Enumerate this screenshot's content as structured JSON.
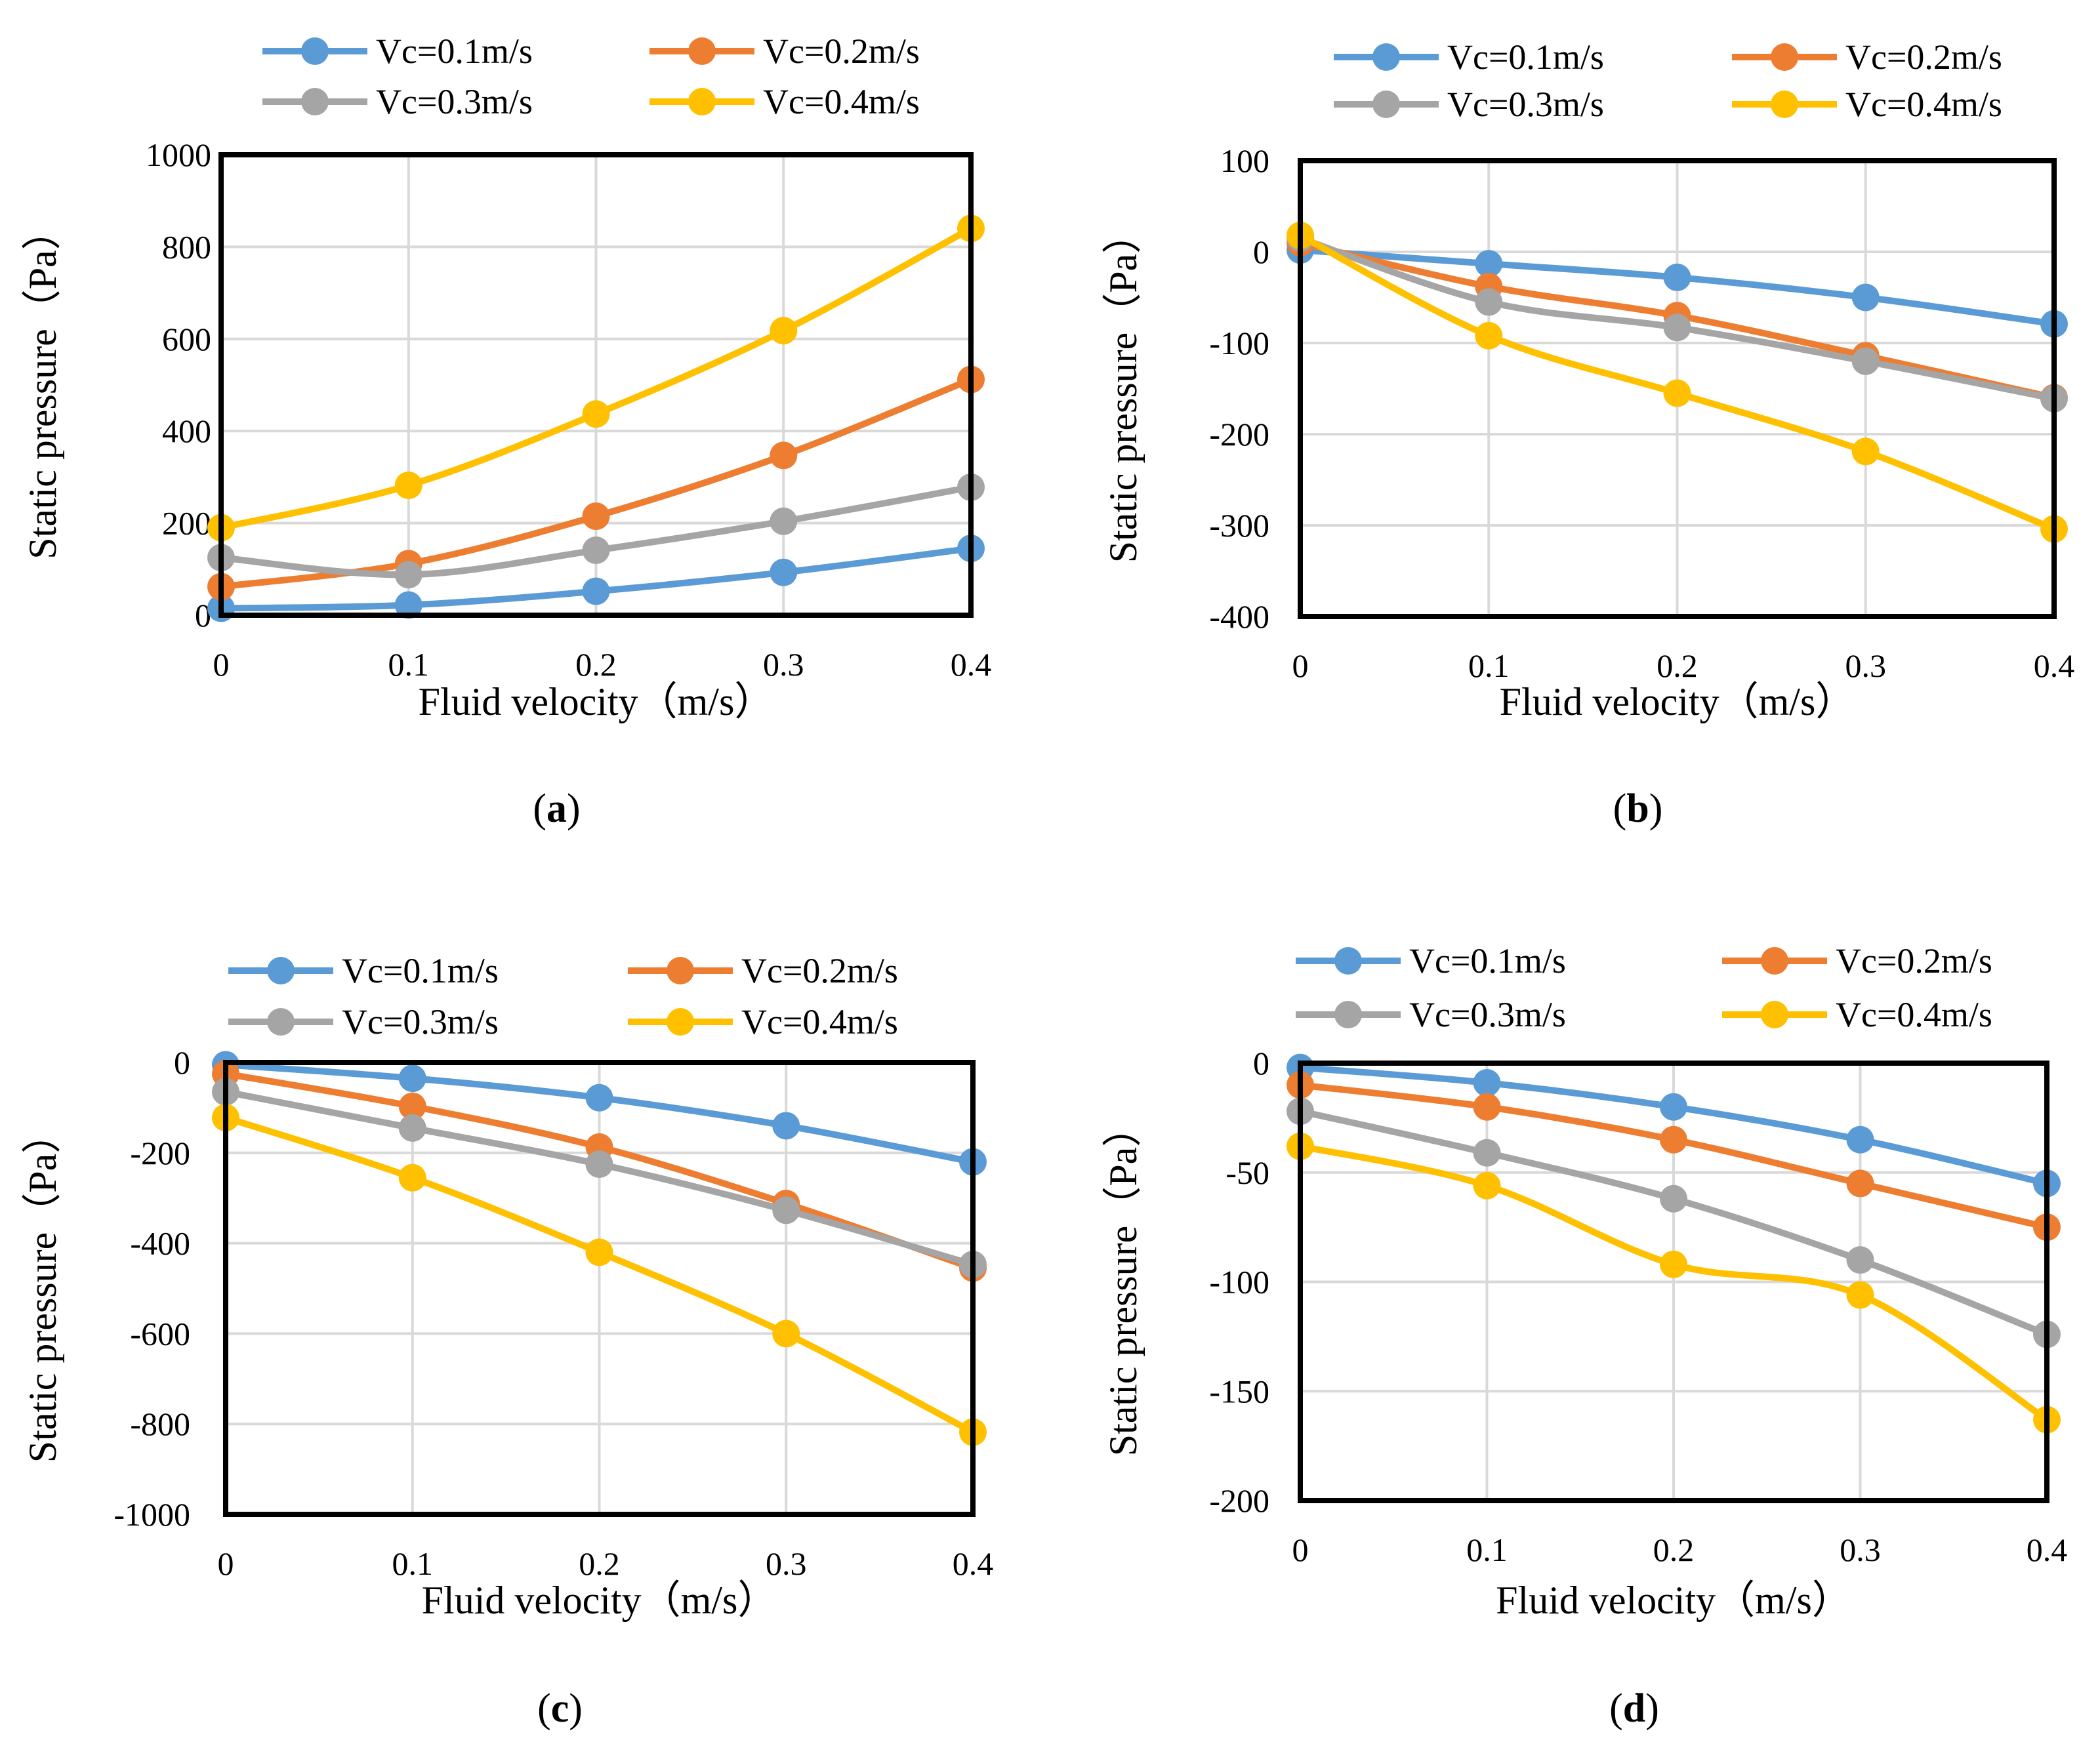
{
  "series_style": {
    "colors": [
      "#5B9BD5",
      "#ED7D31",
      "#A5A5A5",
      "#FFC000"
    ]
  },
  "chart_data": [
    {
      "type": "line",
      "panel_label": "a",
      "xlabel": "Fluid velocity（m/s）",
      "ylabel": "Static pressure（Pa）",
      "x": [
        0,
        0.1,
        0.2,
        0.3,
        0.4
      ],
      "xticks": [
        "0",
        "0.1",
        "0.2",
        "0.3",
        "0.4"
      ],
      "ylim": [
        0,
        1000
      ],
      "yticks": [
        0,
        200,
        400,
        600,
        800,
        1000
      ],
      "grid": true,
      "legend": "top",
      "series": [
        {
          "name": "Vc=0.1m/s",
          "values": [
            15,
            22,
            52,
            93,
            145
          ]
        },
        {
          "name": "Vc=0.2m/s",
          "values": [
            62,
            112,
            215,
            347,
            512
          ]
        },
        {
          "name": "Vc=0.3m/s",
          "values": [
            125,
            88,
            141,
            204,
            278
          ]
        },
        {
          "name": "Vc=0.4m/s",
          "values": [
            190,
            282,
            437,
            618,
            840
          ]
        }
      ]
    },
    {
      "type": "line",
      "panel_label": "b",
      "xlabel": "Fluid velocity（m/s）",
      "ylabel": "Static pressure（Pa）",
      "x": [
        0,
        0.1,
        0.2,
        0.3,
        0.4
      ],
      "xticks": [
        "0",
        "0.1",
        "0.2",
        "0.3",
        "0.4"
      ],
      "ylim": [
        -400,
        100
      ],
      "yticks": [
        -400,
        -300,
        -200,
        -100,
        0,
        100
      ],
      "grid": true,
      "legend": "top",
      "series": [
        {
          "name": "Vc=0.1m/s",
          "values": [
            2,
            -13,
            -28,
            -50,
            -79
          ]
        },
        {
          "name": "Vc=0.2m/s",
          "values": [
            10,
            -38,
            -70,
            -114,
            -160
          ]
        },
        {
          "name": "Vc=0.3m/s",
          "values": [
            15,
            -55,
            -83,
            -120,
            -161
          ]
        },
        {
          "name": "Vc=0.4m/s",
          "values": [
            18,
            -92,
            -155,
            -219,
            -304
          ]
        }
      ]
    },
    {
      "type": "line",
      "panel_label": "c",
      "xlabel": "Fluid velocity（m/s）",
      "ylabel": "Static pressure（Pa）",
      "x": [
        0,
        0.1,
        0.2,
        0.3,
        0.4
      ],
      "xticks": [
        "0",
        "0.1",
        "0.2",
        "0.3",
        "0.4"
      ],
      "ylim": [
        -1000,
        0
      ],
      "yticks": [
        -1000,
        -800,
        -600,
        -400,
        -200,
        0
      ],
      "grid": true,
      "legend": "top",
      "series": [
        {
          "name": "Vc=0.1m/s",
          "values": [
            -5,
            -35,
            -78,
            -140,
            -220
          ]
        },
        {
          "name": "Vc=0.2m/s",
          "values": [
            -25,
            -97,
            -187,
            -312,
            -455
          ]
        },
        {
          "name": "Vc=0.3m/s",
          "values": [
            -65,
            -145,
            -225,
            -327,
            -447
          ]
        },
        {
          "name": "Vc=0.4m/s",
          "values": [
            -122,
            -255,
            -420,
            -600,
            -818
          ]
        }
      ]
    },
    {
      "type": "line",
      "panel_label": "d",
      "xlabel": "Fluid velocity（m/s）",
      "ylabel": "Static pressure（Pa）",
      "x": [
        0,
        0.1,
        0.2,
        0.3,
        0.4
      ],
      "xticks": [
        "0",
        "0.1",
        "0.2",
        "0.3",
        "0.4"
      ],
      "ylim": [
        -200,
        0
      ],
      "yticks": [
        -200,
        -150,
        -100,
        -50,
        0
      ],
      "grid": true,
      "legend": "top",
      "series": [
        {
          "name": "Vc=0.1m/s",
          "values": [
            -2,
            -9,
            -20,
            -35,
            -55
          ]
        },
        {
          "name": "Vc=0.2m/s",
          "values": [
            -10,
            -20,
            -35,
            -55,
            -75
          ]
        },
        {
          "name": "Vc=0.3m/s",
          "values": [
            -22,
            -41,
            -62,
            -90,
            -124
          ]
        },
        {
          "name": "Vc=0.4m/s",
          "values": [
            -38,
            -56,
            -92,
            -106,
            -163
          ]
        }
      ]
    }
  ]
}
